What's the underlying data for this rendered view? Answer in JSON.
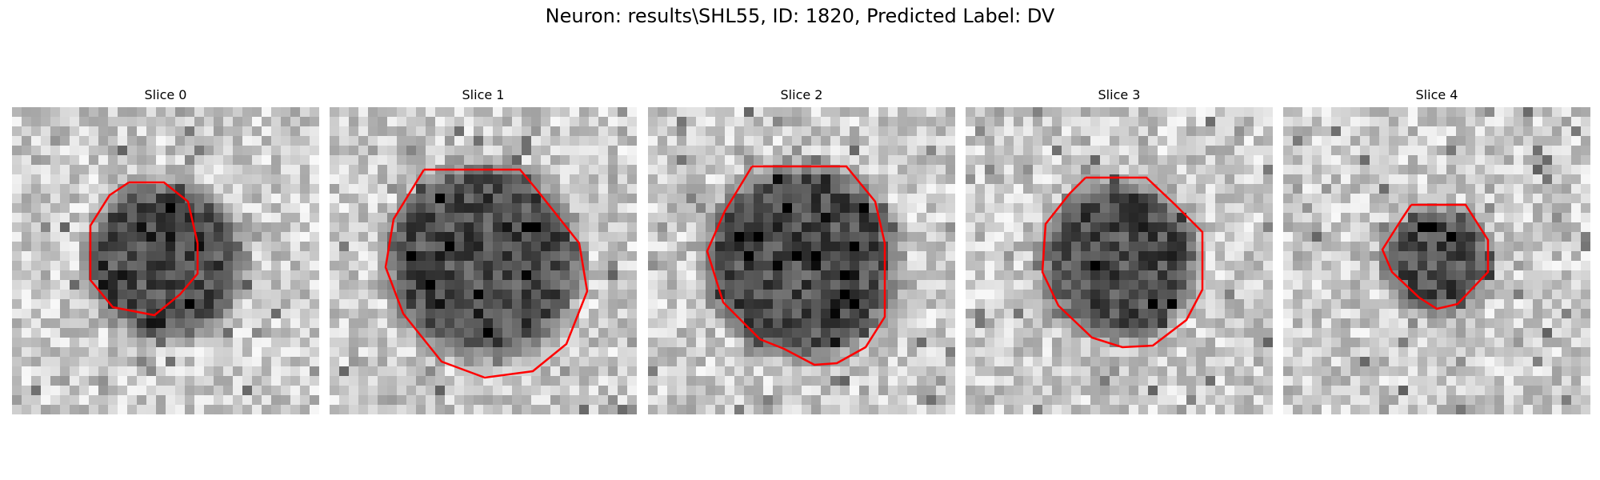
{
  "figure": {
    "title": "Neuron: results\\SHL55, ID: 1820, Predicted Label: DV",
    "contour_color": "#ff0000"
  },
  "slices": [
    {
      "label": "Slice 0",
      "cell_radius": 0.25,
      "roi_radius": 0.25
    },
    {
      "label": "Slice 1",
      "cell_radius": 0.31,
      "roi_radius": 0.33
    },
    {
      "label": "Slice 2",
      "cell_radius": 0.31,
      "roi_radius": 0.34
    },
    {
      "label": "Slice 3",
      "cell_radius": 0.25,
      "roi_radius": 0.28
    },
    {
      "label": "Slice 4",
      "cell_radius": 0.17,
      "roi_radius": 0.18
    }
  ]
}
